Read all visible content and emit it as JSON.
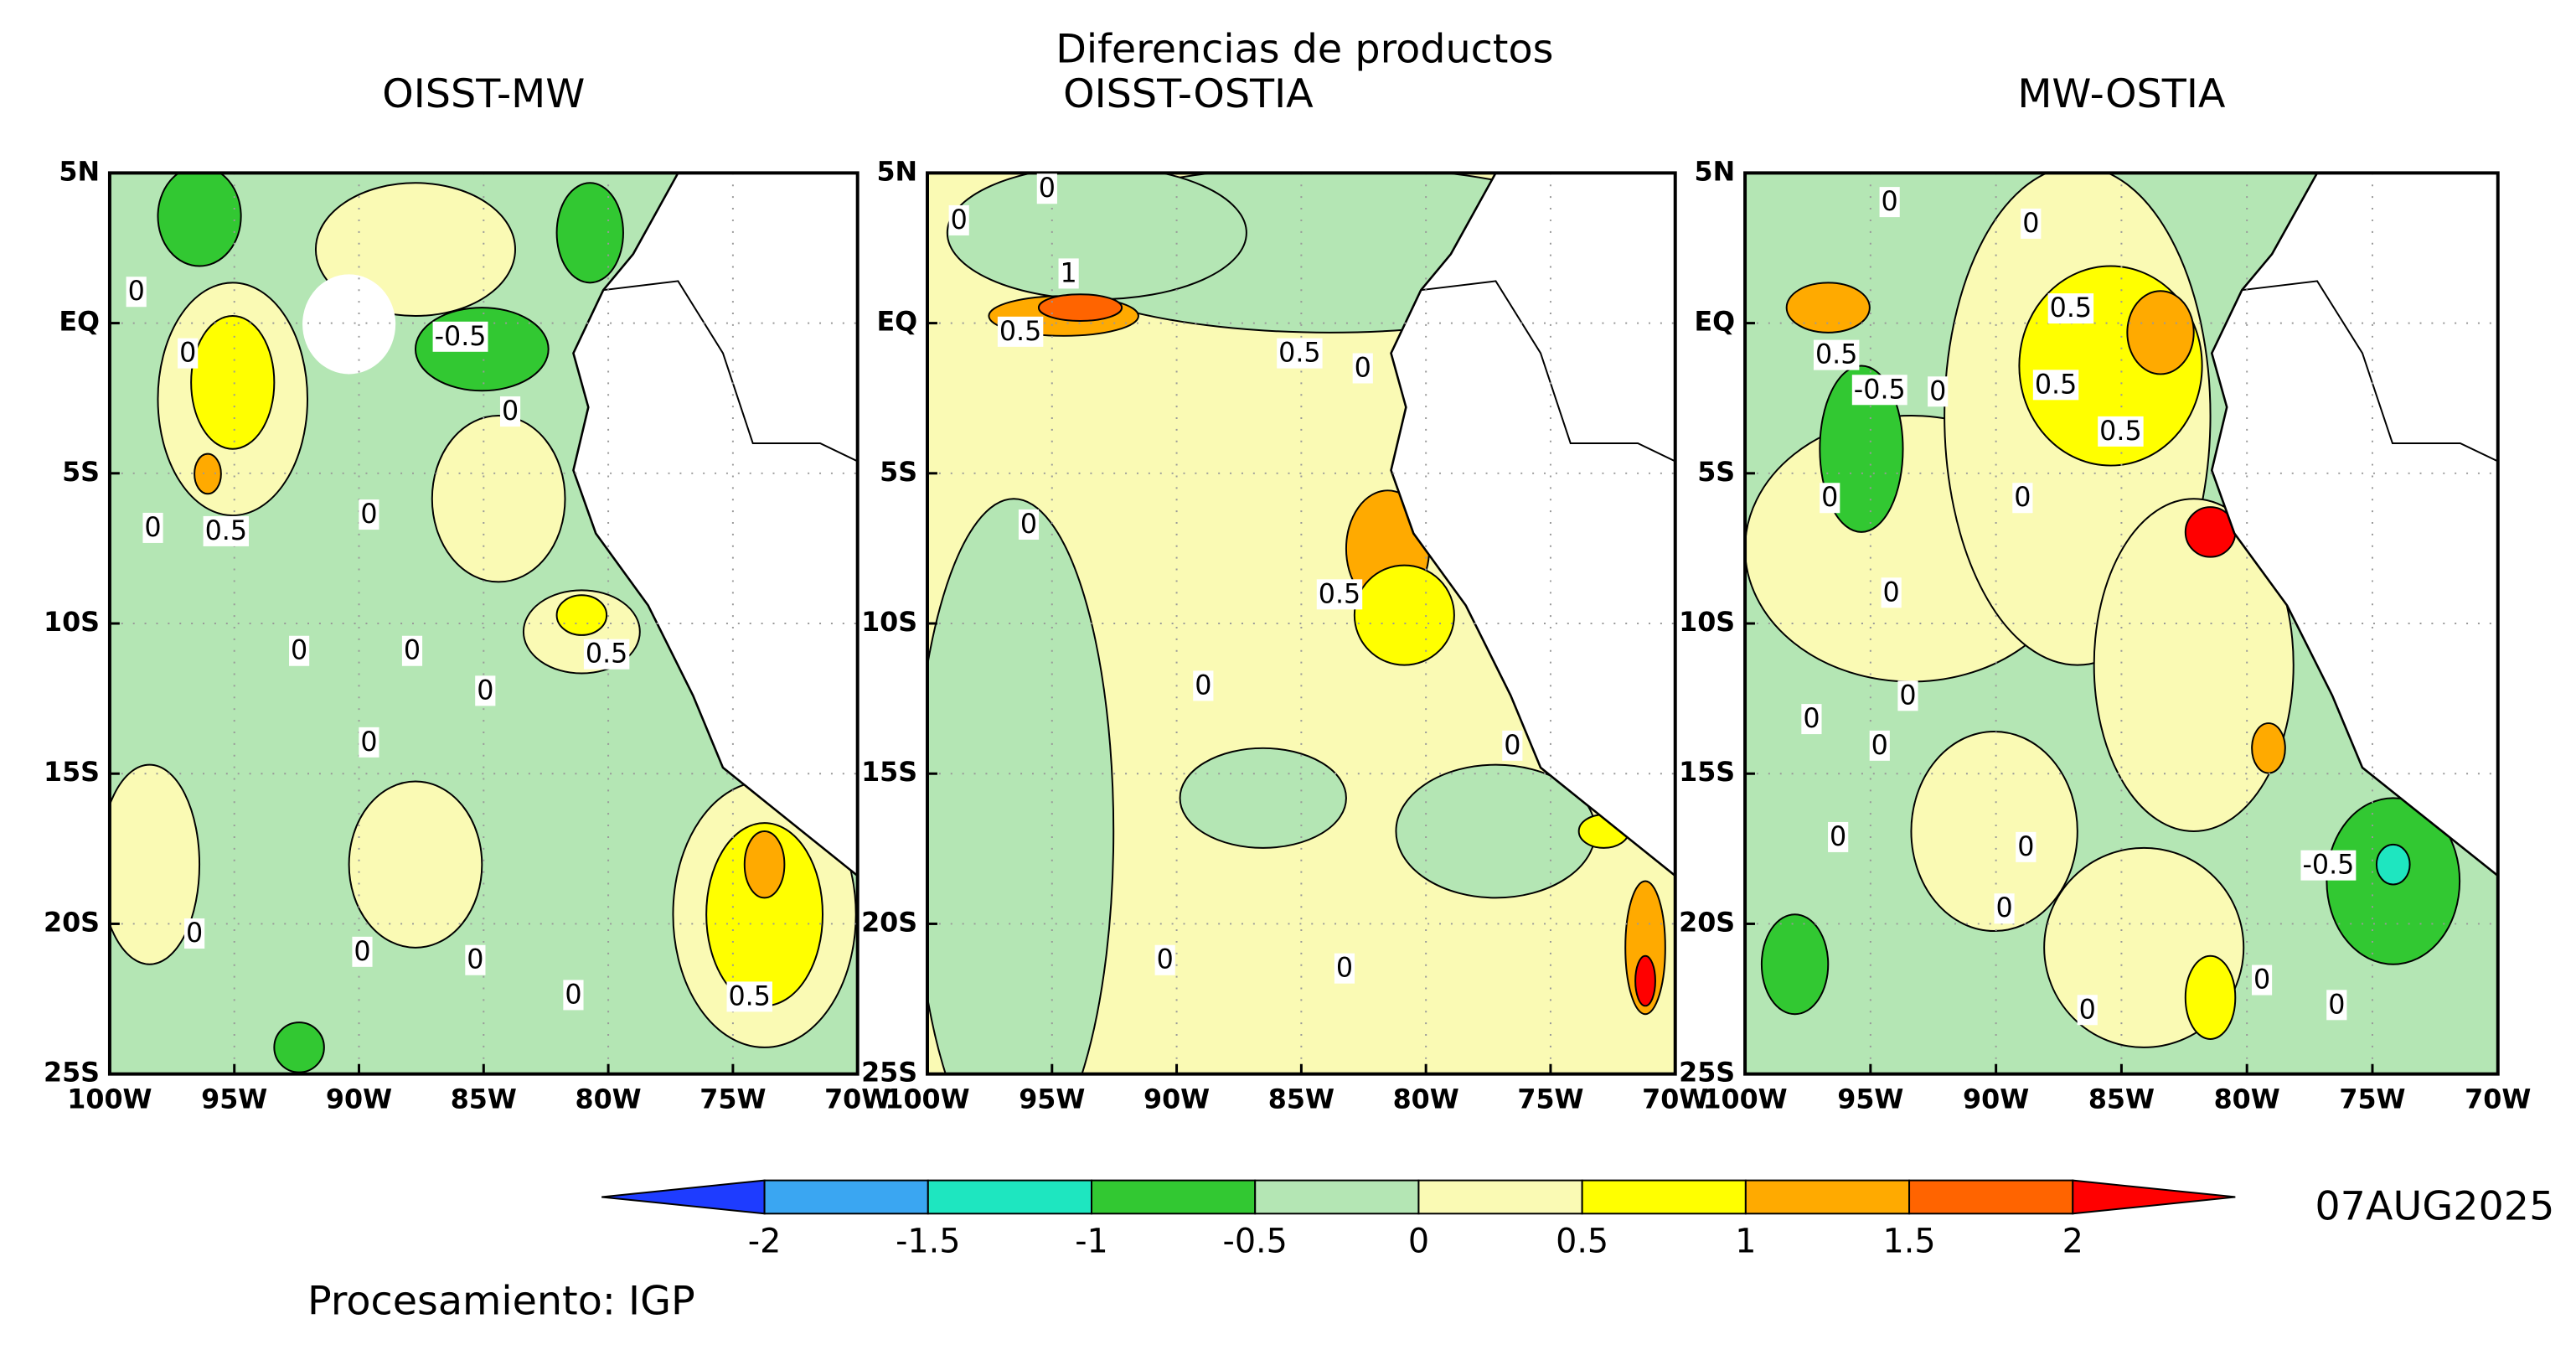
{
  "title": "Diferencias de productos",
  "panels": [
    {
      "title": "OISST-MW",
      "contour_labels": [
        "0",
        "0",
        "-0.5",
        "0",
        "0",
        "0.5",
        "0",
        "0",
        "0",
        "0.5",
        "0",
        "0",
        "0",
        "0",
        "0",
        "0",
        "0.5"
      ]
    },
    {
      "title": "OISST-OSTIA",
      "contour_labels": [
        "0",
        "0",
        "1",
        "0.5",
        "0.5",
        "0",
        "0",
        "0.5",
        "0",
        "0",
        "0",
        "0"
      ]
    },
    {
      "title": "MW-OSTIA",
      "contour_labels": [
        "0",
        "0",
        "0.5",
        "0.5",
        "-0.5",
        "0",
        "0.5",
        "0.5",
        "0",
        "0",
        "0",
        "0",
        "0",
        "0",
        "0",
        "0",
        "-0.5",
        "0",
        "0",
        "0",
        "0"
      ]
    }
  ],
  "lat_labels": [
    "5N",
    "EQ",
    "5S",
    "10S",
    "15S",
    "20S",
    "25S"
  ],
  "lon_labels": [
    "100W",
    "95W",
    "90W",
    "85W",
    "80W",
    "75W",
    "70W"
  ],
  "colorbar": {
    "labels": [
      "-2",
      "-1.5",
      "-1",
      "-0.5",
      "0",
      "0.5",
      "1",
      "1.5",
      "2"
    ],
    "colors": [
      "#1e3cff",
      "#3aa6f2",
      "#1ee6c0",
      "#32c832",
      "#b4e6b4",
      "#fafab4",
      "#ffff00",
      "#ffaa00",
      "#ff6400",
      "#ff0000"
    ]
  },
  "date": "07AUG2025",
  "credit": "Procesamiento: IGP"
}
